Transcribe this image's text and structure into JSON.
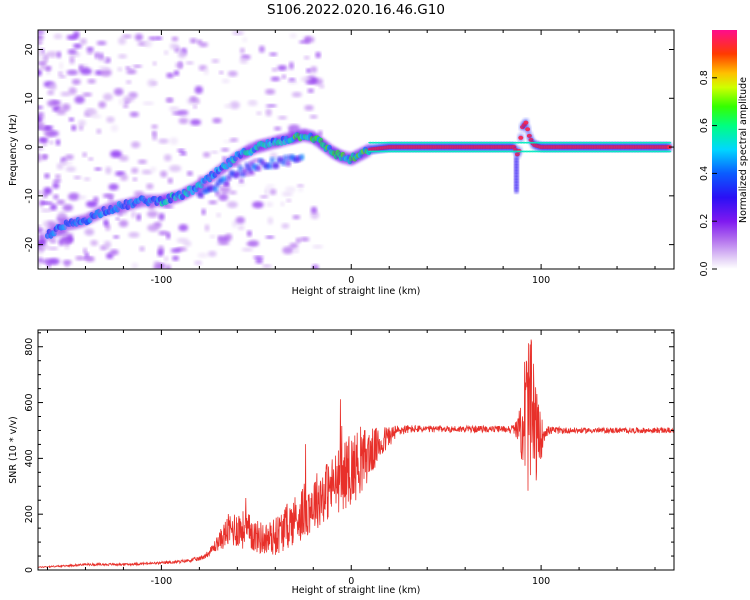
{
  "title": "S106.2022.020.16.46.G10",
  "chart_data": [
    {
      "type": "heatmap",
      "xlabel": "Height of straight line (km)",
      "ylabel": "Frequency (Hz)",
      "xlim": [
        -165,
        170
      ],
      "ylim": [
        -25,
        24
      ],
      "x_ticks": [
        -100,
        0,
        100
      ],
      "y_ticks": [
        -20,
        -10,
        0,
        10,
        20
      ],
      "colorbar": {
        "label": "Normalized spectral amplitude",
        "range": [
          0,
          1
        ],
        "ticks": [
          "0.0",
          "0.2",
          "0.4",
          "0.6",
          "0.8"
        ]
      },
      "ridge": {
        "x": [
          -160,
          -150,
          -140,
          -130,
          -120,
          -110,
          -100,
          -90,
          -80,
          -70,
          -60,
          -50,
          -40,
          -30,
          -25,
          -20,
          -15,
          -10,
          -5,
          0,
          5,
          10,
          20,
          40,
          60,
          80,
          86,
          88,
          90,
          92,
          94,
          96,
          100,
          120,
          140,
          160,
          168
        ],
        "y": [
          -18,
          -16,
          -15,
          -13,
          -12,
          -11,
          -11,
          -10,
          -8,
          -5,
          -2,
          0,
          1,
          2,
          2.5,
          2,
          0.5,
          -1,
          -2,
          -2.5,
          -1.5,
          -0.5,
          0,
          0,
          0,
          0,
          0,
          -2,
          4,
          5,
          2,
          0.5,
          0,
          0,
          0,
          0,
          0
        ]
      }
    },
    {
      "type": "line",
      "xlabel": "Height of straight line (km)",
      "ylabel": "SNR (10 * v/v)",
      "xlim": [
        -165,
        170
      ],
      "ylim": [
        0,
        860
      ],
      "x_ticks": [
        -100,
        0,
        100
      ],
      "y_ticks": [
        0,
        200,
        400,
        600,
        800
      ],
      "series": [
        {
          "color": "#e8302a",
          "x": [
            -165,
            -150,
            -140,
            -120,
            -100,
            -90,
            -80,
            -75,
            -70,
            -65,
            -60,
            -55,
            -50,
            -45,
            -40,
            -35,
            -30,
            -25,
            -20,
            -15,
            -10,
            -5,
            0,
            5,
            10,
            15,
            20,
            25,
            30,
            40,
            50,
            60,
            70,
            80,
            85,
            88,
            90,
            92,
            94,
            96,
            98,
            100,
            102,
            104,
            110,
            120,
            140,
            160,
            170
          ],
          "y": [
            10,
            15,
            20,
            20,
            25,
            30,
            40,
            60,
            100,
            140,
            150,
            140,
            120,
            110,
            120,
            150,
            180,
            210,
            240,
            270,
            300,
            330,
            360,
            390,
            420,
            450,
            480,
            500,
            505,
            505,
            505,
            505,
            505,
            505,
            505,
            505,
            520,
            560,
            560,
            520,
            480,
            470,
            500,
            500,
            500,
            500,
            500,
            500,
            500
          ],
          "noise": [
            2,
            3,
            4,
            4,
            5,
            5,
            8,
            12,
            30,
            60,
            70,
            70,
            60,
            60,
            70,
            80,
            90,
            100,
            100,
            110,
            110,
            120,
            130,
            120,
            90,
            60,
            40,
            20,
            15,
            12,
            12,
            12,
            12,
            12,
            15,
            40,
            150,
            280,
            300,
            250,
            150,
            80,
            30,
            15,
            12,
            10,
            10,
            10,
            10
          ]
        }
      ]
    }
  ]
}
